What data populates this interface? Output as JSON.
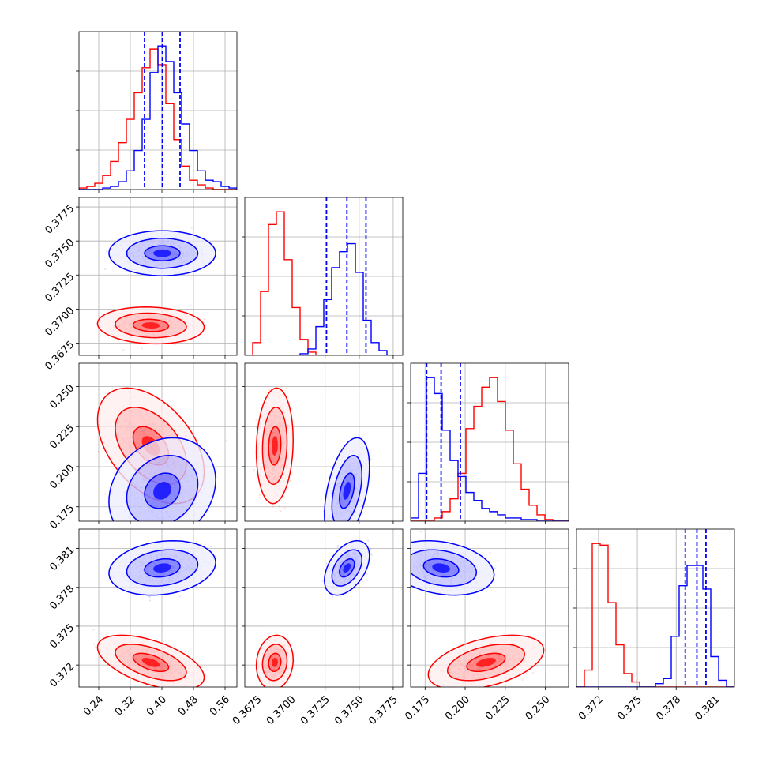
{
  "chart_data": {
    "type": "corner",
    "title": "",
    "grid": true,
    "parameters": [
      {
        "index": 0,
        "range": [
          0.19,
          0.59
        ],
        "ticks": [
          0.24,
          0.32,
          0.4,
          0.48,
          0.56
        ],
        "tick_labels": [
          "0.24",
          "0.32",
          "0.40",
          "0.48",
          "0.56"
        ]
      },
      {
        "index": 1,
        "range": [
          0.3666,
          0.3782
        ],
        "ticks": [
          0.3675,
          0.37,
          0.3725,
          0.375,
          0.3775
        ],
        "tick_labels": [
          "0.3675",
          "0.3700",
          "0.3725",
          "0.3750",
          "0.3775"
        ]
      },
      {
        "index": 2,
        "range": [
          0.166,
          0.2645
        ],
        "ticks": [
          0.175,
          0.2,
          0.225,
          0.25
        ],
        "tick_labels": [
          "0.175",
          "0.200",
          "0.225",
          "0.250"
        ]
      },
      {
        "index": 3,
        "range": [
          0.3703,
          0.3825
        ],
        "ticks": [
          0.372,
          0.375,
          0.378,
          0.381
        ],
        "tick_labels": [
          "0.372",
          "0.375",
          "0.378",
          "0.381"
        ]
      }
    ],
    "series": [
      {
        "color": "#ff0000",
        "means": [
          0.372,
          0.3688,
          0.213,
          0.3722
        ],
        "sigmas": [
          0.045,
          0.00045,
          0.012,
          0.0007
        ],
        "correlations": {
          "1-0": -0.1,
          "2-0": -0.45,
          "2-1": 0.1,
          "3-0": -0.55,
          "3-1": 0.1,
          "3-2": 0.45
        },
        "histograms": [
          {
            "bin_edges": [
              0.19,
              0.21,
              0.23,
              0.25,
              0.27,
              0.29,
              0.31,
              0.33,
              0.35,
              0.37,
              0.39,
              0.41,
              0.43,
              0.45,
              0.47,
              0.49,
              0.51,
              0.53,
              0.55,
              0.57,
              0.59
            ],
            "counts": [
              1,
              2,
              4,
              9,
              18,
              30,
              45,
              62,
              78,
              90,
              80,
              55,
              32,
              15,
              6,
              3,
              1,
              0,
              0,
              0
            ]
          },
          {
            "bin_edges": [
              0.3666,
              0.36718,
              0.36776,
              0.36834,
              0.36892,
              0.3695,
              0.37008,
              0.37066,
              0.37124,
              0.37182,
              0.3724,
              0.37298,
              0.37356,
              0.37414,
              0.37472,
              0.3753,
              0.37588,
              0.37646,
              0.37704,
              0.37762,
              0.3782
            ],
            "counts": [
              0,
              8,
              40,
              82,
              90,
              60,
              30,
              10,
              2,
              0,
              0,
              0,
              0,
              0,
              0,
              0,
              0,
              0,
              0,
              0
            ]
          },
          {
            "bin_edges": [
              0.166,
              0.17093,
              0.17585,
              0.18078,
              0.1857,
              0.19063,
              0.19555,
              0.20048,
              0.2054,
              0.21033,
              0.21525,
              0.22018,
              0.2251,
              0.23003,
              0.23495,
              0.23988,
              0.2448,
              0.24973,
              0.25465,
              0.25958,
              0.2645
            ],
            "counts": [
              0,
              0,
              0,
              2,
              6,
              14,
              30,
              58,
              72,
              84,
              90,
              75,
              57,
              36,
              20,
              10,
              4,
              1,
              0,
              0
            ]
          },
          {
            "bin_edges": [
              0.3703,
              0.37091,
              0.37152,
              0.37213,
              0.37274,
              0.37335,
              0.37396,
              0.37457,
              0.37518,
              0.37579,
              0.3764,
              0.37701,
              0.37762,
              0.37823,
              0.37884,
              0.37945,
              0.38006,
              0.38067,
              0.38128,
              0.38189,
              0.3825
            ],
            "counts": [
              0,
              10,
              85,
              84,
              50,
              25,
              8,
              3,
              0,
              0,
              0,
              0,
              0,
              0,
              0,
              0,
              0,
              0,
              0,
              0
            ]
          }
        ]
      },
      {
        "color": "#0000ff",
        "means": [
          0.401,
          0.3741,
          0.185,
          0.3795
        ],
        "sigmas": [
          0.045,
          0.00055,
          0.011,
          0.0007
        ],
        "correlations": {
          "1-0": 0.0,
          "2-0": 0.2,
          "2-1": 0.45,
          "3-0": 0.2,
          "3-1": 0.45,
          "3-2": -0.25
        },
        "quantile_lines": [
          [
            0.356,
            0.401,
            0.446
          ],
          [
            0.3726,
            0.3741,
            0.3755
          ],
          [
            0.176,
            0.185,
            0.197
          ],
          [
            0.3787,
            0.3796,
            0.3803
          ]
        ],
        "histograms": [
          {
            "bin_edges": [
              0.19,
              0.21,
              0.23,
              0.25,
              0.27,
              0.29,
              0.31,
              0.33,
              0.35,
              0.37,
              0.39,
              0.41,
              0.43,
              0.45,
              0.47,
              0.49,
              0.51,
              0.53,
              0.55,
              0.57,
              0.59
            ],
            "counts": [
              0,
              0,
              0,
              1,
              2,
              5,
              12,
              25,
              45,
              75,
              92,
              82,
              62,
              42,
              25,
              12,
              6,
              5,
              2,
              1
            ]
          },
          {
            "bin_edges": [
              0.3666,
              0.36718,
              0.36776,
              0.36834,
              0.36892,
              0.3695,
              0.37008,
              0.37066,
              0.37124,
              0.37182,
              0.3724,
              0.37298,
              0.37356,
              0.37414,
              0.37472,
              0.3753,
              0.37588,
              0.37646,
              0.37704,
              0.37762,
              0.3782
            ],
            "counts": [
              0,
              0,
              0,
              0,
              0,
              0,
              0,
              1,
              4,
              18,
              35,
              55,
              65,
              70,
              52,
              22,
              8,
              3,
              0,
              0
            ]
          },
          {
            "bin_edges": [
              0.166,
              0.17093,
              0.17585,
              0.18078,
              0.1857,
              0.19063,
              0.19555,
              0.20048,
              0.2054,
              0.21033,
              0.21525,
              0.22018,
              0.2251,
              0.23003,
              0.23495,
              0.23988,
              0.2448,
              0.24973,
              0.25465,
              0.25958,
              0.2645
            ],
            "counts": [
              2,
              30,
              90,
              80,
              57,
              38,
              28,
              18,
              13,
              8,
              6,
              4,
              2,
              2,
              1,
              1,
              0,
              0,
              0,
              0
            ]
          },
          {
            "bin_edges": [
              0.3703,
              0.37091,
              0.37152,
              0.37213,
              0.37274,
              0.37335,
              0.37396,
              0.37457,
              0.37518,
              0.37579,
              0.3764,
              0.37701,
              0.37762,
              0.37823,
              0.37884,
              0.37945,
              0.38006,
              0.38067,
              0.38128,
              0.38189,
              0.3825
            ],
            "counts": [
              0,
              0,
              0,
              0,
              0,
              0,
              0,
              0,
              0,
              0,
              2,
              5,
              30,
              60,
              72,
              72,
              58,
              18,
              4,
              0
            ]
          }
        ]
      }
    ]
  }
}
